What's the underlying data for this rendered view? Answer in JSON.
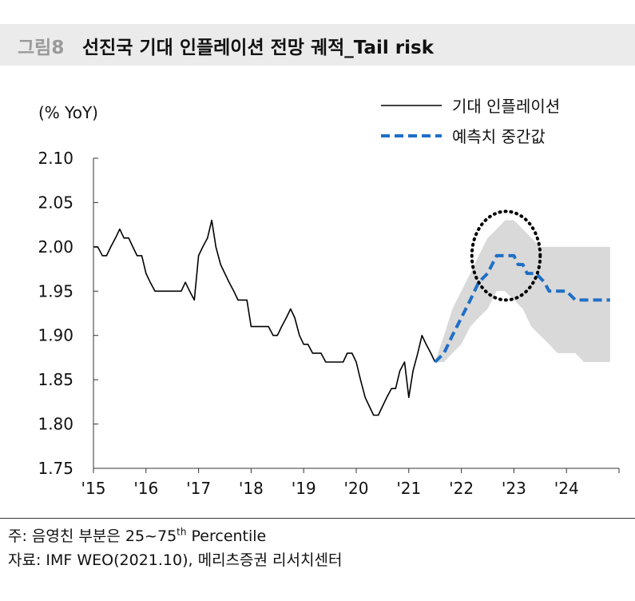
{
  "header": {
    "figure_number": "그림8",
    "title": "선진국 기대 인플레이션 전망 궤적_Tail risk"
  },
  "notes": {
    "note_prefix": "주: 음영친 부분은 25~75",
    "note_sup": "th",
    "note_suffix": " Percentile",
    "source": "자료: IMF WEO(2021.10), 메리츠증권 리서치센터"
  },
  "chart_data": {
    "type": "line",
    "ylabel": "(% YoY)",
    "ylim": [
      1.75,
      2.1
    ],
    "yticks": [
      "2.10",
      "2.05",
      "2.00",
      "1.95",
      "1.90",
      "1.85",
      "1.80",
      "1.75"
    ],
    "xlim": [
      2015.0,
      2025.0
    ],
    "xticks": [
      {
        "label": "'15",
        "x": 2015.0
      },
      {
        "label": "'16",
        "x": 2016.0
      },
      {
        "label": "'17",
        "x": 2017.0
      },
      {
        "label": "'18",
        "x": 2018.0
      },
      {
        "label": "'19",
        "x": 2019.0
      },
      {
        "label": "'20",
        "x": 2020.0
      },
      {
        "label": "'21",
        "x": 2021.0
      },
      {
        "label": "'22",
        "x": 2022.0
      },
      {
        "label": "'23",
        "x": 2023.0
      },
      {
        "label": "'24",
        "x": 2024.0
      }
    ],
    "grid": false,
    "legend_position": "top-right",
    "series": [
      {
        "name": "기대 인플레이션",
        "color": "#000000",
        "style": "solid",
        "points": [
          [
            2015.0,
            2.0
          ],
          [
            2015.08,
            2.0
          ],
          [
            2015.17,
            1.99
          ],
          [
            2015.25,
            1.99
          ],
          [
            2015.33,
            2.0
          ],
          [
            2015.42,
            2.01
          ],
          [
            2015.5,
            2.02
          ],
          [
            2015.58,
            2.01
          ],
          [
            2015.67,
            2.01
          ],
          [
            2015.75,
            2.0
          ],
          [
            2015.83,
            1.99
          ],
          [
            2015.92,
            1.99
          ],
          [
            2016.0,
            1.97
          ],
          [
            2016.08,
            1.96
          ],
          [
            2016.17,
            1.95
          ],
          [
            2016.25,
            1.95
          ],
          [
            2016.33,
            1.95
          ],
          [
            2016.42,
            1.95
          ],
          [
            2016.5,
            1.95
          ],
          [
            2016.58,
            1.95
          ],
          [
            2016.67,
            1.95
          ],
          [
            2016.75,
            1.96
          ],
          [
            2016.83,
            1.95
          ],
          [
            2016.92,
            1.94
          ],
          [
            2017.0,
            1.99
          ],
          [
            2017.08,
            2.0
          ],
          [
            2017.17,
            2.01
          ],
          [
            2017.25,
            2.03
          ],
          [
            2017.33,
            2.0
          ],
          [
            2017.42,
            1.98
          ],
          [
            2017.5,
            1.97
          ],
          [
            2017.58,
            1.96
          ],
          [
            2017.67,
            1.95
          ],
          [
            2017.75,
            1.94
          ],
          [
            2017.83,
            1.94
          ],
          [
            2017.92,
            1.94
          ],
          [
            2018.0,
            1.91
          ],
          [
            2018.08,
            1.91
          ],
          [
            2018.17,
            1.91
          ],
          [
            2018.25,
            1.91
          ],
          [
            2018.33,
            1.91
          ],
          [
            2018.42,
            1.9
          ],
          [
            2018.5,
            1.9
          ],
          [
            2018.58,
            1.91
          ],
          [
            2018.67,
            1.92
          ],
          [
            2018.75,
            1.93
          ],
          [
            2018.83,
            1.92
          ],
          [
            2018.92,
            1.9
          ],
          [
            2019.0,
            1.89
          ],
          [
            2019.08,
            1.89
          ],
          [
            2019.17,
            1.88
          ],
          [
            2019.25,
            1.88
          ],
          [
            2019.33,
            1.88
          ],
          [
            2019.42,
            1.87
          ],
          [
            2019.5,
            1.87
          ],
          [
            2019.58,
            1.87
          ],
          [
            2019.67,
            1.87
          ],
          [
            2019.75,
            1.87
          ],
          [
            2019.83,
            1.88
          ],
          [
            2019.92,
            1.88
          ],
          [
            2020.0,
            1.87
          ],
          [
            2020.08,
            1.85
          ],
          [
            2020.17,
            1.83
          ],
          [
            2020.25,
            1.82
          ],
          [
            2020.33,
            1.81
          ],
          [
            2020.42,
            1.81
          ],
          [
            2020.5,
            1.82
          ],
          [
            2020.58,
            1.83
          ],
          [
            2020.67,
            1.84
          ],
          [
            2020.75,
            1.84
          ],
          [
            2020.83,
            1.86
          ],
          [
            2020.92,
            1.87
          ],
          [
            2021.0,
            1.83
          ],
          [
            2021.08,
            1.86
          ],
          [
            2021.17,
            1.88
          ],
          [
            2021.25,
            1.9
          ],
          [
            2021.33,
            1.89
          ],
          [
            2021.42,
            1.88
          ],
          [
            2021.5,
            1.87
          ]
        ]
      },
      {
        "name": "예측치 중간값",
        "color": "#1f6fc5",
        "style": "dashed",
        "points": [
          [
            2021.5,
            1.87
          ],
          [
            2021.67,
            1.88
          ],
          [
            2021.83,
            1.9
          ],
          [
            2022.0,
            1.92
          ],
          [
            2022.17,
            1.94
          ],
          [
            2022.33,
            1.96
          ],
          [
            2022.5,
            1.97
          ],
          [
            2022.67,
            1.99
          ],
          [
            2022.83,
            1.99
          ],
          [
            2023.0,
            1.99
          ],
          [
            2023.08,
            1.98
          ],
          [
            2023.17,
            1.98
          ],
          [
            2023.25,
            1.97
          ],
          [
            2023.42,
            1.97
          ],
          [
            2023.58,
            1.96
          ],
          [
            2023.67,
            1.95
          ],
          [
            2023.83,
            1.95
          ],
          [
            2024.0,
            1.95
          ],
          [
            2024.17,
            1.94
          ],
          [
            2024.33,
            1.94
          ],
          [
            2024.5,
            1.94
          ],
          [
            2024.67,
            1.94
          ],
          [
            2024.83,
            1.94
          ]
        ]
      }
    ],
    "band": {
      "color": "#d9d9d9",
      "upper": [
        [
          2021.5,
          1.87
        ],
        [
          2021.67,
          1.9
        ],
        [
          2021.83,
          1.93
        ],
        [
          2022.0,
          1.95
        ],
        [
          2022.17,
          1.97
        ],
        [
          2022.33,
          1.99
        ],
        [
          2022.5,
          2.01
        ],
        [
          2022.67,
          2.02
        ],
        [
          2022.83,
          2.03
        ],
        [
          2023.0,
          2.03
        ],
        [
          2023.17,
          2.02
        ],
        [
          2023.33,
          2.01
        ],
        [
          2023.5,
          2.0
        ],
        [
          2023.67,
          2.0
        ],
        [
          2023.83,
          2.0
        ],
        [
          2024.0,
          2.0
        ],
        [
          2024.5,
          2.0
        ],
        [
          2024.83,
          2.0
        ]
      ],
      "lower": [
        [
          2021.5,
          1.87
        ],
        [
          2021.67,
          1.87
        ],
        [
          2021.83,
          1.88
        ],
        [
          2022.0,
          1.89
        ],
        [
          2022.17,
          1.91
        ],
        [
          2022.33,
          1.92
        ],
        [
          2022.5,
          1.93
        ],
        [
          2022.67,
          1.95
        ],
        [
          2022.83,
          1.95
        ],
        [
          2023.0,
          1.94
        ],
        [
          2023.17,
          1.93
        ],
        [
          2023.33,
          1.91
        ],
        [
          2023.5,
          1.9
        ],
        [
          2023.67,
          1.89
        ],
        [
          2023.83,
          1.88
        ],
        [
          2024.0,
          1.88
        ],
        [
          2024.17,
          1.88
        ],
        [
          2024.33,
          1.87
        ],
        [
          2024.5,
          1.87
        ],
        [
          2024.83,
          1.87
        ]
      ]
    },
    "annotation": {
      "type": "dotted-ellipse",
      "cx": 2022.85,
      "cy": 1.99,
      "rx": 0.65,
      "ry": 0.05
    }
  }
}
